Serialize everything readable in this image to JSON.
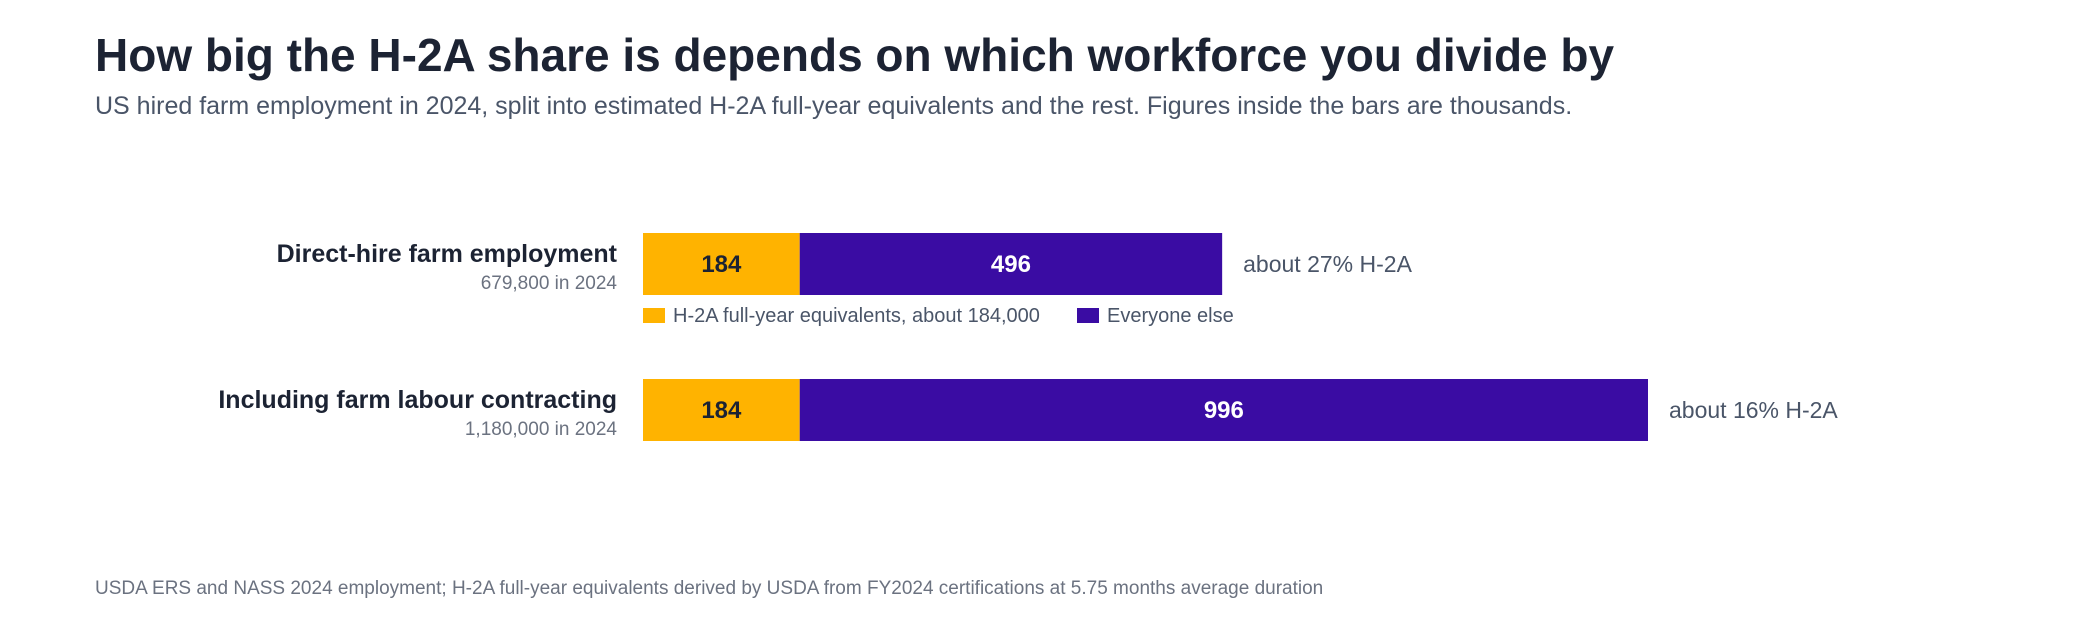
{
  "title": "How big the H-2A share is depends on which workforce you divide by",
  "subtitle": "US hired farm employment in 2024, split into estimated H-2A full-year equivalents and the rest. Figures inside the bars are thousands.",
  "source": "USDA ERS and NASS 2024 employment; H-2A full-year equivalents derived by USDA from FY2024 certifications at 5.75 months average duration",
  "colors": {
    "h2a": "#FFB300",
    "rest": "#3A0CA3",
    "text_dark": "#1c2333",
    "text_muted": "#6b7280",
    "text_mid": "#4a5568"
  },
  "chart_data": {
    "type": "bar",
    "orientation": "horizontal",
    "stacked": true,
    "categories": [
      "Direct-hire farm employment",
      "Including farm labour contracting"
    ],
    "category_sublabels": [
      "679,800 in 2024",
      "1,180,000 in 2024"
    ],
    "series": [
      {
        "name": "H-2A full-year equivalents, about 184,000",
        "values": [
          184,
          184
        ]
      },
      {
        "name": "Everyone else",
        "values": [
          496,
          996
        ]
      }
    ],
    "bar_labels": [
      [
        "184",
        "184"
      ],
      [
        "496",
        "996"
      ]
    ],
    "end_labels": [
      "about 27% H-2A",
      "about 16% H-2A"
    ],
    "xlim": [
      0,
      1180
    ],
    "legend_position": "below-first-bar",
    "grid": false
  }
}
